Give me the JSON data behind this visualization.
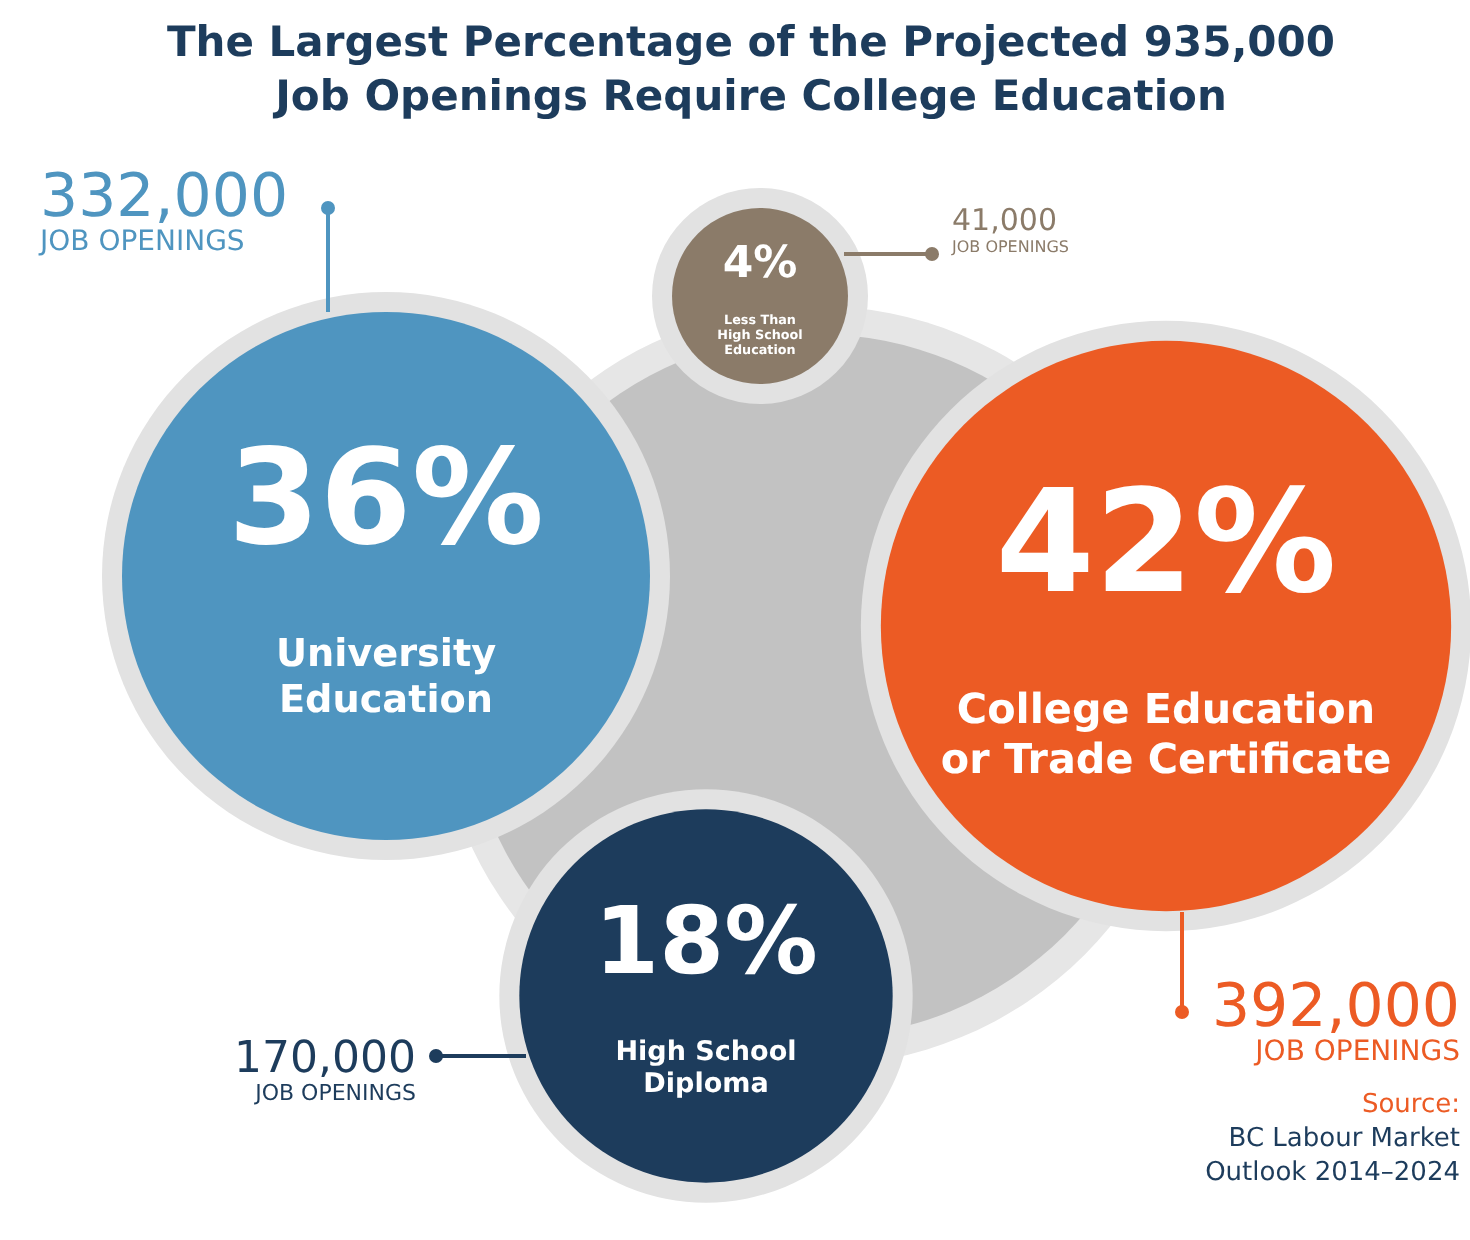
{
  "chart_data": {
    "type": "other",
    "title": "The Largest Percentage of the Projected 935,000 Job Openings Require College Education",
    "categories": [
      "University Education",
      "College Education or Trade Certificate",
      "High School Diploma",
      "Less Than High School Education"
    ],
    "values": [
      36,
      42,
      18,
      4
    ],
    "value_labels": [
      "36%",
      "42%",
      "18%",
      "4%"
    ],
    "colors": [
      "#4f95c0",
      "#ec5b24",
      "#1d3c5c",
      "#8b7b69"
    ],
    "annotations": [
      "332,000 JOB OPENINGS",
      "392,000 JOB OPENINGS",
      "170,000 JOB OPENINGS",
      "41,000 JOB OPENINGS",
      "Source: BC Labour Market Outlook 2014–2024"
    ]
  }
}
